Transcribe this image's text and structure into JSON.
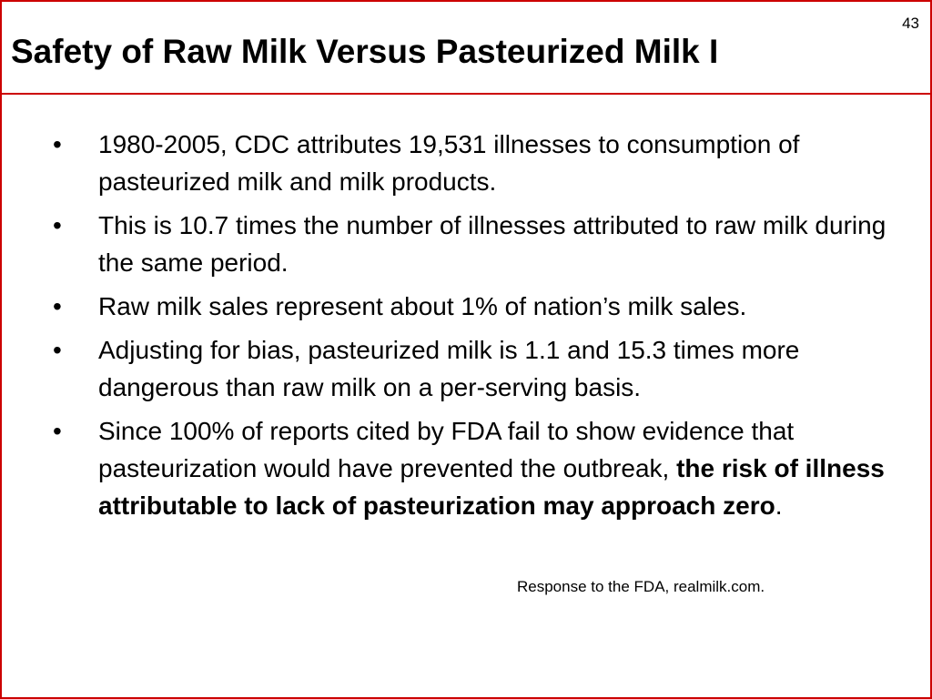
{
  "slide": {
    "number": "43",
    "title": "Safety of Raw Milk Versus Pasteurized Milk I",
    "bullet_marker": "•",
    "bullets": [
      {
        "text": "1980-2005, CDC attributes 19,531 illnesses to consumption of pasteurized milk and milk products."
      },
      {
        "text": "This is 10.7 times the number of illnesses attributed to raw milk during the same period."
      },
      {
        "text": "Raw milk sales represent about 1% of nation’s milk sales."
      },
      {
        "text": "Adjusting for bias, pasteurized milk is 1.1 and 15.3 times more dangerous than raw milk on a per-serving basis."
      },
      {
        "text": "Since 100% of reports cited by FDA fail to show evidence that pasteurization would have prevented the outbreak, ",
        "bold_text": "the risk of illness attributable to lack of pasteurization may approach zero",
        "tail_text": "."
      }
    ],
    "source": "Response to the FDA, realmilk.com.",
    "colors": {
      "border": "#cc0000",
      "text": "#000000",
      "background": "#ffffff"
    }
  }
}
